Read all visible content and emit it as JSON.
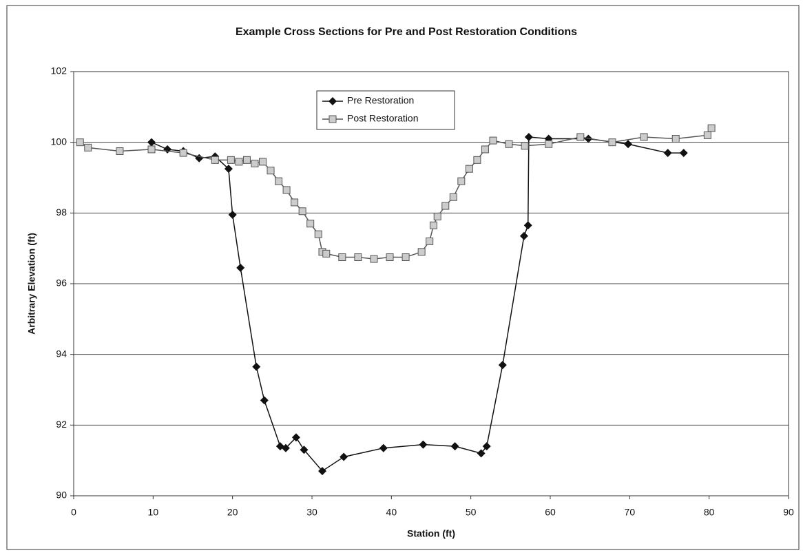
{
  "chart_data": {
    "type": "line",
    "title": "Example Cross Sections for Pre and Post Restoration Conditions",
    "xlabel": "Station (ft)",
    "ylabel": "Arbitrary Elevation (ft)",
    "xlim": [
      0,
      90
    ],
    "xticks": [
      0,
      10,
      20,
      30,
      40,
      50,
      60,
      70,
      80,
      90
    ],
    "ylim": [
      90,
      102
    ],
    "yticks": [
      90,
      92,
      94,
      96,
      98,
      100,
      102
    ],
    "grid": true,
    "legend": "top",
    "series": [
      {
        "name": "Pre Restoration",
        "color": "#111111",
        "marker": "diamond",
        "x": [
          9.8,
          11.8,
          13.8,
          15.8,
          17.8,
          19.5,
          20,
          21,
          23,
          24,
          26,
          26.7,
          28,
          29,
          31.3,
          34,
          39,
          44,
          48,
          51.3,
          52,
          54,
          56.7,
          57.2,
          57.3,
          59.8,
          64.8,
          69.8,
          74.8,
          76.8
        ],
        "values": [
          100.0,
          99.8,
          99.75,
          99.55,
          99.6,
          99.25,
          97.95,
          96.45,
          93.65,
          92.7,
          91.4,
          91.35,
          91.65,
          91.3,
          90.7,
          91.1,
          91.35,
          91.45,
          91.4,
          91.2,
          91.4,
          93.7,
          97.35,
          97.65,
          100.15,
          100.1,
          100.1,
          99.95,
          99.7,
          99.7
        ]
      },
      {
        "name": "Post Restoration",
        "color": "#555555",
        "marker": "square",
        "x": [
          0.8,
          1.8,
          5.8,
          9.8,
          13.8,
          17.8,
          19.8,
          20.8,
          21.8,
          22.8,
          23.8,
          24.8,
          25.8,
          26.8,
          27.8,
          28.8,
          29.8,
          30.8,
          31.3,
          31.8,
          33.8,
          35.8,
          37.8,
          39.8,
          41.8,
          43.8,
          44.8,
          45.3,
          45.8,
          46.8,
          47.8,
          48.8,
          49.8,
          50.8,
          51.8,
          52.8,
          54.8,
          56.8,
          59.8,
          63.8,
          67.8,
          71.8,
          75.8,
          79.8,
          80.3
        ],
        "values": [
          100.0,
          99.85,
          99.75,
          99.8,
          99.7,
          99.5,
          99.5,
          99.45,
          99.5,
          99.4,
          99.45,
          99.2,
          98.9,
          98.65,
          98.3,
          98.05,
          97.7,
          97.4,
          96.9,
          96.85,
          96.75,
          96.75,
          96.7,
          96.75,
          96.75,
          96.9,
          97.2,
          97.65,
          97.9,
          98.2,
          98.45,
          98.9,
          99.25,
          99.5,
          99.8,
          100.05,
          99.95,
          99.9,
          99.95,
          100.15,
          100.0,
          100.15,
          100.1,
          100.2,
          100.4
        ]
      }
    ]
  }
}
